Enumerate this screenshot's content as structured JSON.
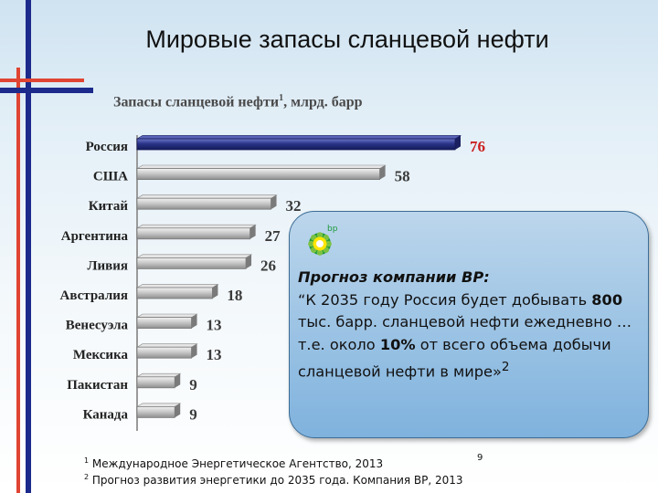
{
  "slide": {
    "title": "Мировые запасы сланцевой нефти",
    "page_number": "9"
  },
  "chart_data": {
    "type": "bar",
    "orientation": "horizontal",
    "title": "Запасы сланцевой нефти",
    "title_sup": "1",
    "title_suffix": ", млрд. барр",
    "categories": [
      "Россия",
      "США",
      "Китай",
      "Аргентина",
      "Ливия",
      "Австралия",
      "Венесуэла",
      "Мексика",
      "Пакистан",
      "Канада"
    ],
    "values": [
      76,
      58,
      32,
      27,
      26,
      18,
      13,
      13,
      9,
      9
    ],
    "highlight": "Россия",
    "colors": {
      "highlight": "#2a3488",
      "normal": "#c8c8c8",
      "highlight_label": "#cc2020",
      "label": "#3a3a3a"
    },
    "xlabel": "",
    "ylabel": "",
    "xlim": [
      0,
      80
    ],
    "grid": false,
    "legend": "none"
  },
  "forecast": {
    "logo_text": "bp",
    "title": "Прогноз компании BP:",
    "text_1": "“К 2035 году Россия будет добывать ",
    "bold_1": "800",
    "text_2": " тыс. барр. сланцевой нефти ежедневно …т.е. около ",
    "bold_2": "10%",
    "text_3": " от всего объема добычи сланцевой нефти в мире»",
    "sup": "2"
  },
  "footnotes": [
    {
      "num": "1",
      "text": " Международное Энергетическое Агентство, 2013"
    },
    {
      "num": "2",
      "text": " Прогноз развития энергетики до 2035 года. Компания BP, 2013"
    }
  ]
}
